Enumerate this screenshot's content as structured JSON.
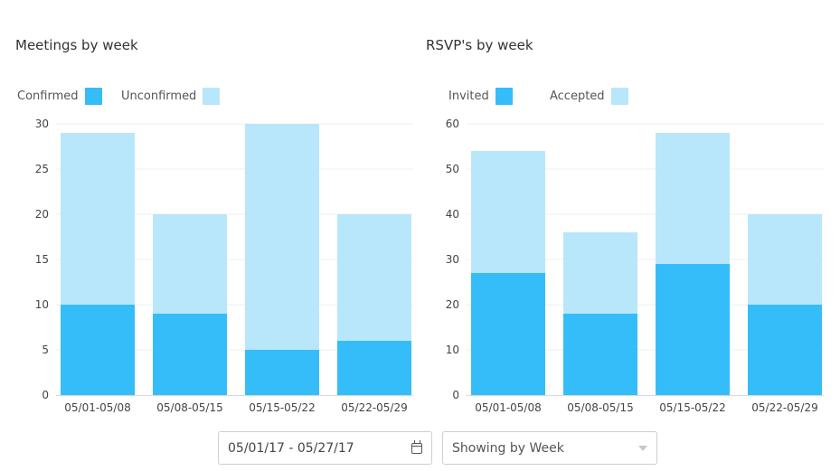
{
  "chart_data": [
    {
      "type": "bar",
      "stacked": true,
      "title": "Meetings by week",
      "categories": [
        "05/01-05/08",
        "05/08-05/15",
        "05/15-05/22",
        "05/22-05/29"
      ],
      "series": [
        {
          "name": "Confirmed",
          "values": [
            10,
            9,
            5,
            6
          ],
          "color": "#35bdf9"
        },
        {
          "name": "Unconfirmed",
          "values": [
            19,
            11,
            25,
            14
          ],
          "color": "#b8e7fb"
        }
      ],
      "ylim": [
        0,
        30
      ],
      "yticks": [
        0,
        5,
        10,
        15,
        20,
        25,
        30
      ],
      "xlabel": "",
      "ylabel": "",
      "grid": true,
      "legend": "top-left"
    },
    {
      "type": "bar",
      "stacked": true,
      "title": "RSVP's by week",
      "categories": [
        "05/01-05/08",
        "05/08-05/15",
        "05/15-05/22",
        "05/22-05/29"
      ],
      "series": [
        {
          "name": "Invited",
          "values": [
            27,
            18,
            29,
            20
          ],
          "color": "#35bdf9"
        },
        {
          "name": "Accepted",
          "values": [
            27,
            18,
            29,
            20
          ],
          "color": "#b8e7fb"
        }
      ],
      "ylim": [
        0,
        60
      ],
      "yticks": [
        0,
        10,
        20,
        30,
        40,
        50,
        60
      ],
      "xlabel": "",
      "ylabel": "",
      "grid": true,
      "legend": "top-left"
    }
  ],
  "controls": {
    "date_range": "05/01/17 - 05/27/17",
    "view_select": "Showing by Week",
    "calendar_icon": "calendar-icon",
    "dropdown_icon": "chevron-down-icon"
  }
}
